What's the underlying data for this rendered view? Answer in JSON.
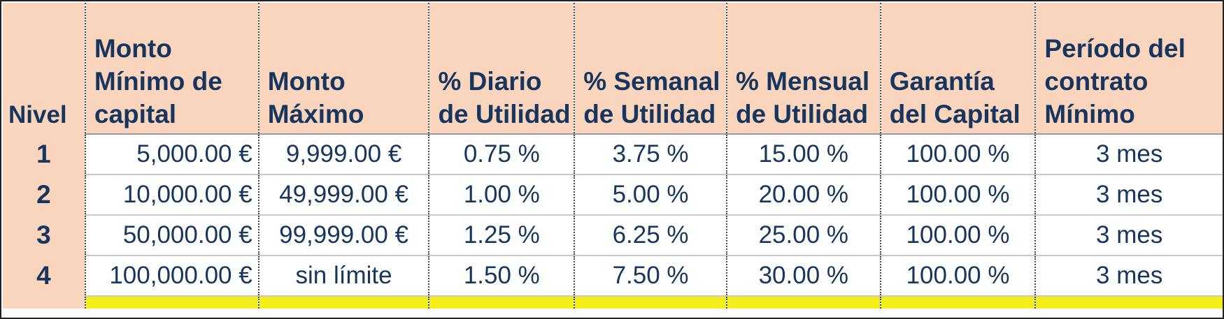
{
  "table": {
    "headers": [
      "Nivel",
      "Monto Mínimo de capital",
      "Monto Máximo",
      "% Diario de Utilidad",
      "% Semanal de Utilidad",
      "% Mensual de Utilidad",
      "Garantía del Capital",
      "Período del contrato Mínimo"
    ],
    "rows": [
      {
        "nivel": "1",
        "minimo": "5,000.00 €",
        "maximo": "9,999.00 €",
        "diario": "0.75 %",
        "semanal": "3.75 %",
        "mensual": "15.00 %",
        "garantia": "100.00 %",
        "periodo": "3 mes"
      },
      {
        "nivel": "2",
        "minimo": "10,000.00 €",
        "maximo": "49,999.00 €",
        "diario": "1.00 %",
        "semanal": "5.00 %",
        "mensual": "20.00 %",
        "garantia": "100.00 %",
        "periodo": "3 mes"
      },
      {
        "nivel": "3",
        "minimo": "50,000.00 €",
        "maximo": "99,999.00 €",
        "diario": "1.25 %",
        "semanal": "6.25 %",
        "mensual": "25.00 %",
        "garantia": "100.00 %",
        "periodo": "3 mes"
      },
      {
        "nivel": "4",
        "minimo": "100,000.00 €",
        "maximo": "sin límite",
        "diario": "1.50 %",
        "semanal": "7.50 %",
        "mensual": "30.00 %",
        "garantia": "100.00 %",
        "periodo": "3 mes"
      }
    ]
  },
  "colors": {
    "header_bg": "#f9d5bd",
    "text": "#17355d",
    "highlight_row": "#f2ef1b"
  }
}
